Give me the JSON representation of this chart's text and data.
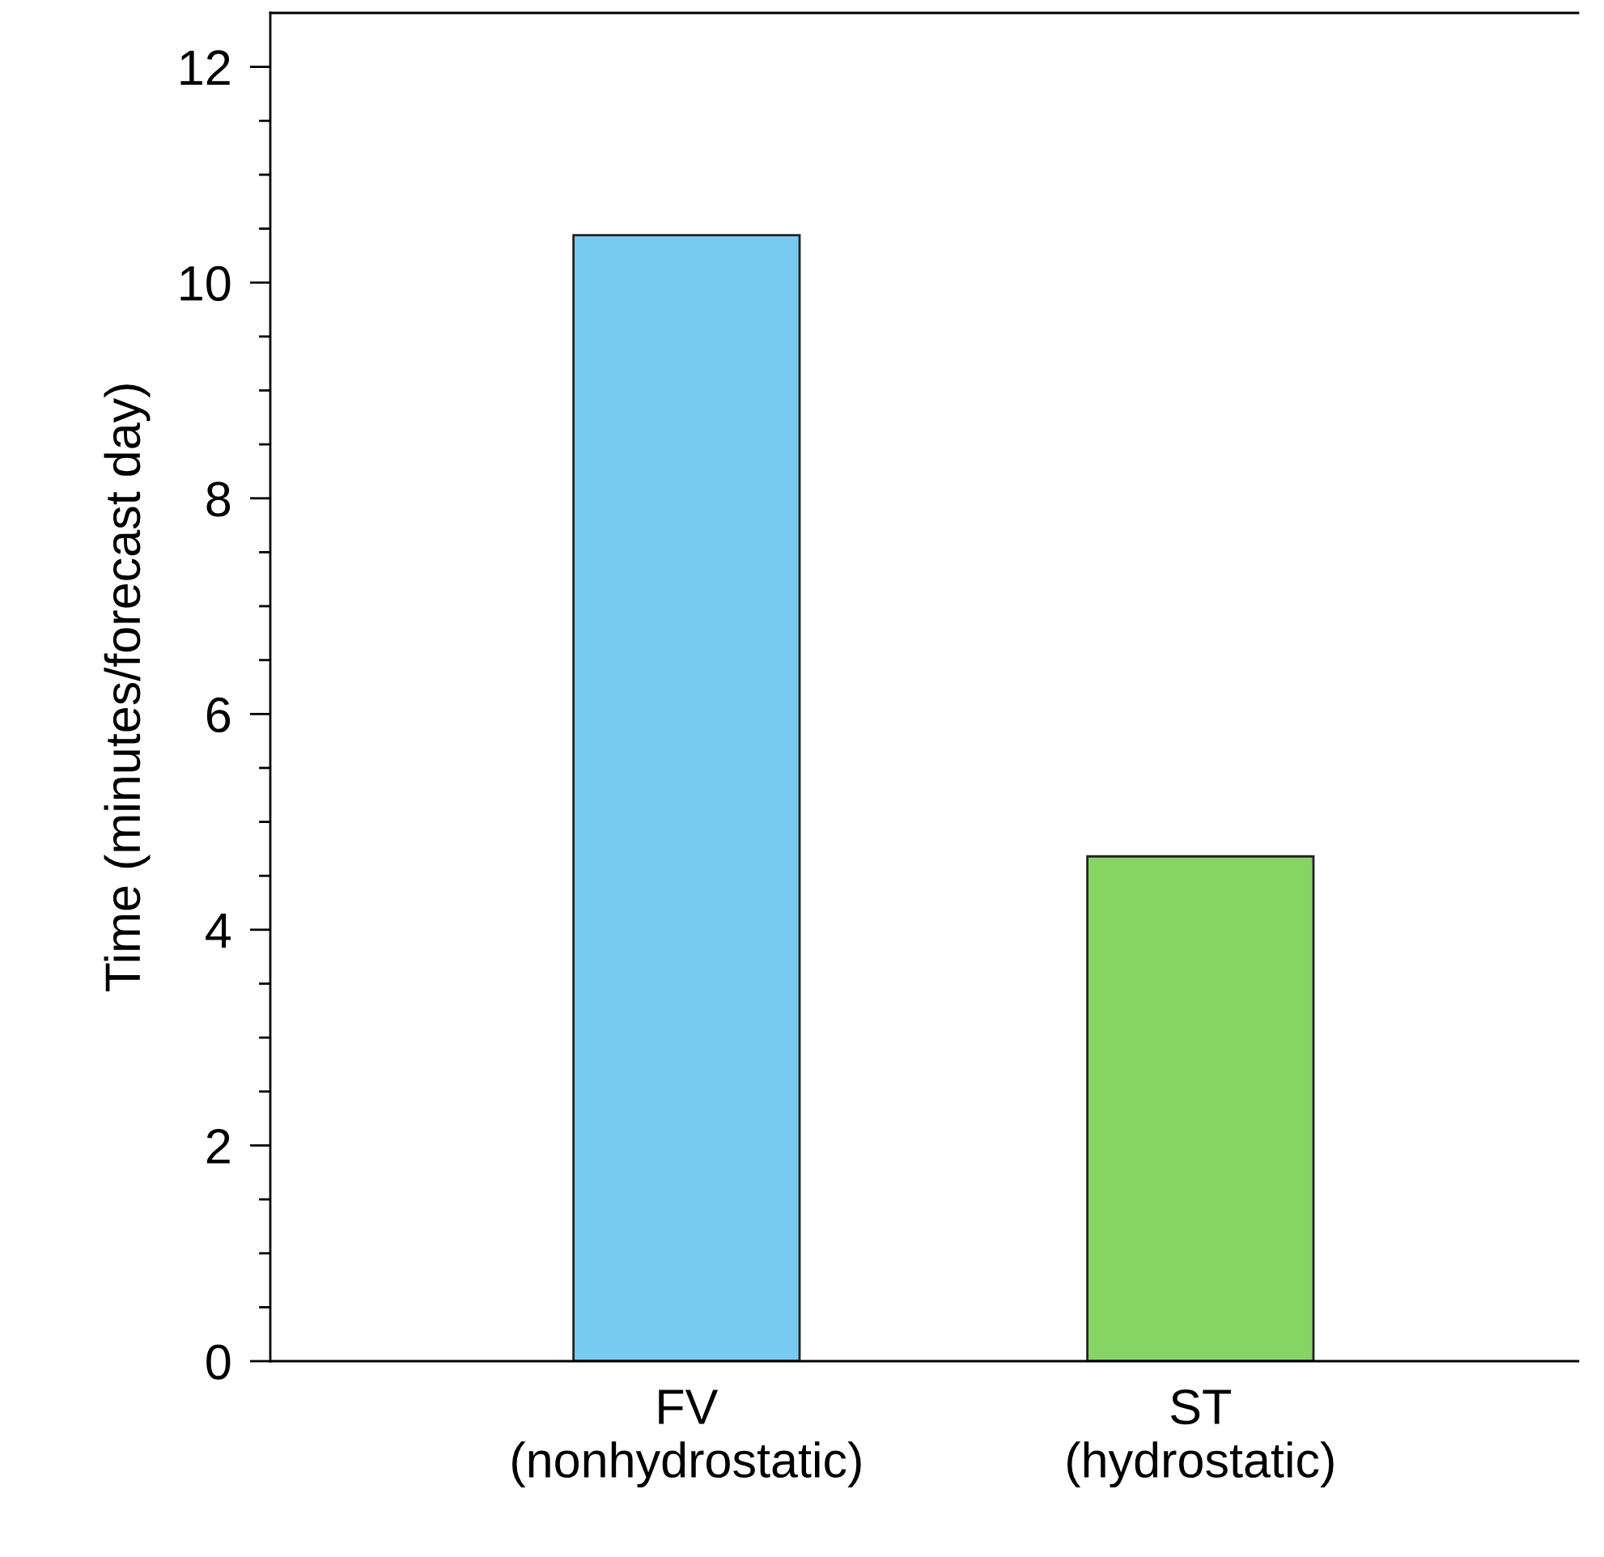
{
  "chart_data": {
    "type": "bar",
    "ylabel": "Time (minutes/forecast day)",
    "categories": [
      "FV\n(nonhydrostatic)",
      "ST\n(hydrostatic)"
    ],
    "values": [
      10.44,
      4.68
    ],
    "colors": [
      "#77cbf2",
      "#87d465"
    ],
    "ylim": [
      0,
      12.5
    ],
    "yticks": [
      0,
      {
        "value": 0.5,
        "label": null
      },
      2,
      {
        "value": 1,
        "label": null
      },
      {
        "value": 1.5,
        "label": null
      },
      {
        "value": 2.5,
        "label": null
      },
      {
        "value": 3,
        "label": null
      },
      {
        "value": 3.5,
        "label": null
      },
      4,
      {
        "value": 4.5,
        "label": null
      },
      {
        "value": 5,
        "label": null
      },
      {
        "value": 5.5,
        "label": null
      },
      6,
      {
        "value": 6.5,
        "label": null
      },
      {
        "value": 7,
        "label": null
      },
      {
        "value": 7.5,
        "label": null
      },
      8,
      {
        "value": 8.5,
        "label": null
      },
      {
        "value": 9,
        "label": null
      },
      {
        "value": 9.5,
        "label": null
      },
      10,
      {
        "value": 10.5,
        "label": null
      },
      {
        "value": 11,
        "label": null
      },
      {
        "value": 11.5,
        "label": null
      },
      12
    ],
    "grid": false,
    "legend": false
  }
}
